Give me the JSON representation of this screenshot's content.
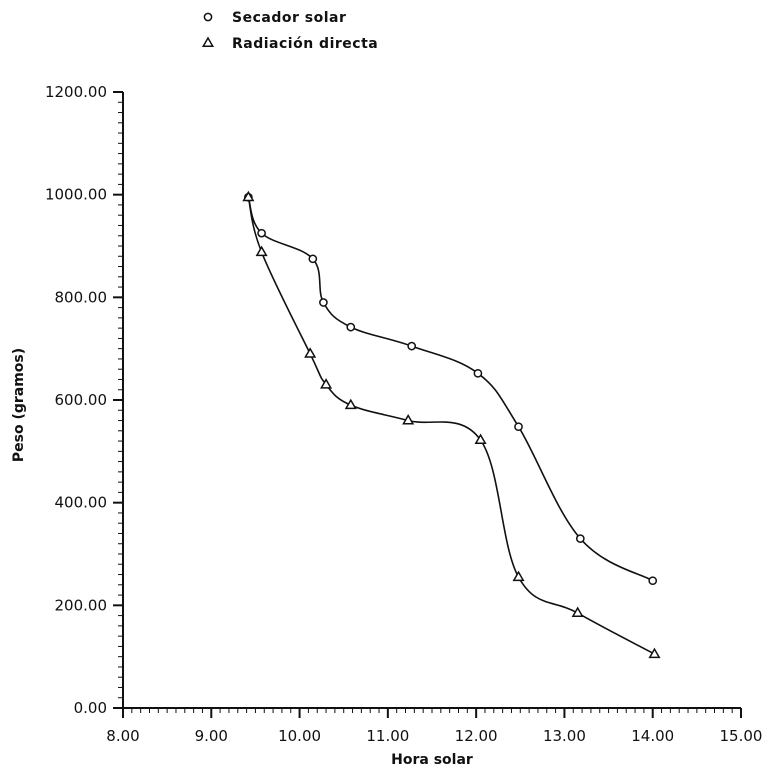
{
  "chart_data": {
    "type": "line",
    "title": "",
    "xlabel": "Hora solar",
    "ylabel": "Peso (gramos)",
    "xlim": [
      8.0,
      15.0
    ],
    "ylim": [
      0.0,
      1200.0
    ],
    "x_ticks": [
      8.0,
      9.0,
      10.0,
      11.0,
      12.0,
      13.0,
      14.0,
      15.0
    ],
    "x_tick_labels": [
      "8.00",
      "9.00",
      "10.00",
      "11.00",
      "12.00",
      "13.00",
      "14.00",
      "15.00"
    ],
    "y_ticks": [
      0,
      200,
      400,
      600,
      800,
      1000,
      1200
    ],
    "y_tick_labels": [
      "0.00",
      "200.00",
      "400.00",
      "600.00",
      "800.00",
      "1000.00",
      "1200.00"
    ],
    "grid": false,
    "legend_position": "top-left",
    "series": [
      {
        "name": "Secador solar",
        "marker": "circle",
        "x": [
          9.42,
          9.57,
          10.15,
          10.27,
          10.58,
          11.27,
          12.02,
          12.48,
          13.18,
          14.0
        ],
        "y": [
          995,
          925,
          875,
          790,
          742,
          705,
          652,
          548,
          330,
          248
        ]
      },
      {
        "name": "Radiación directa",
        "marker": "triangle",
        "x": [
          9.42,
          9.57,
          10.12,
          10.3,
          10.58,
          11.23,
          12.05,
          12.48,
          13.15,
          14.02
        ],
        "y": [
          995,
          888,
          690,
          630,
          590,
          560,
          522,
          255,
          185,
          105
        ]
      }
    ]
  }
}
